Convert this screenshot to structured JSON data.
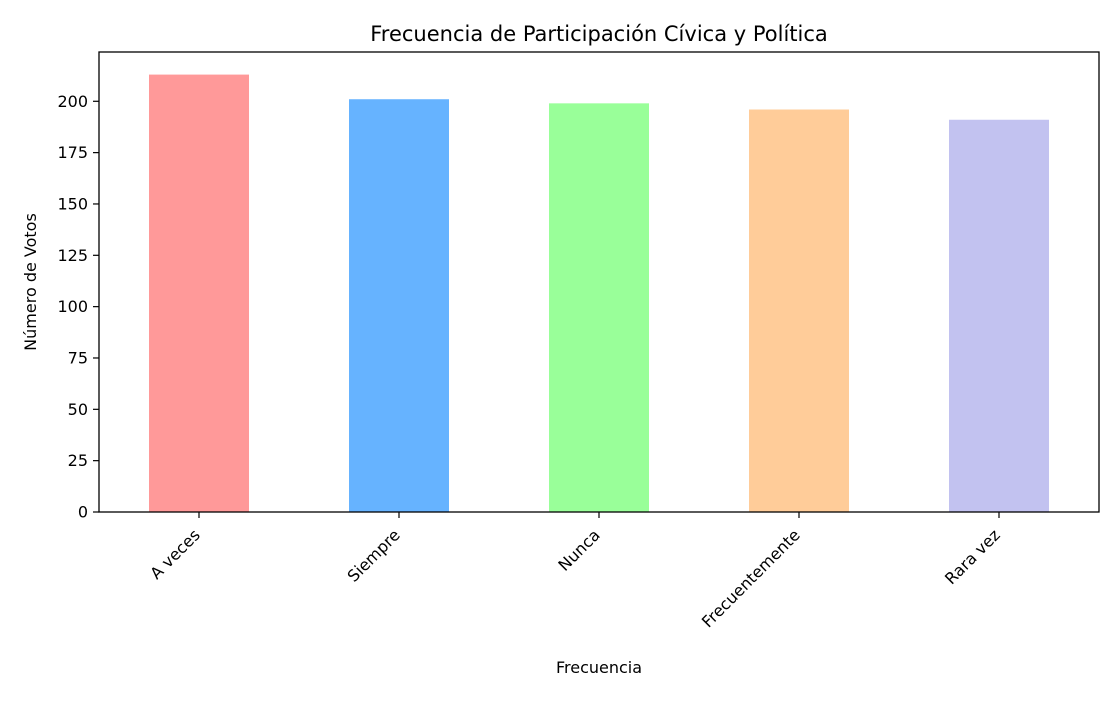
{
  "chart_data": {
    "type": "bar",
    "title": "Frecuencia de Participación Cívica y Política",
    "xlabel": "Frecuencia",
    "ylabel": "Número de Votos",
    "categories": [
      "A veces",
      "Siempre",
      "Nunca",
      "Frecuentemente",
      "Rara vez"
    ],
    "values": [
      213,
      201,
      199,
      196,
      191
    ],
    "colors": [
      "#ff9999",
      "#66b3ff",
      "#99ff99",
      "#ffcc99",
      "#c2c2f0"
    ],
    "ylim": [
      0,
      224
    ],
    "yticks": [
      0,
      25,
      50,
      75,
      100,
      125,
      150,
      175,
      200
    ],
    "xtick_rotation": 45,
    "grid": false,
    "legend": "none"
  }
}
